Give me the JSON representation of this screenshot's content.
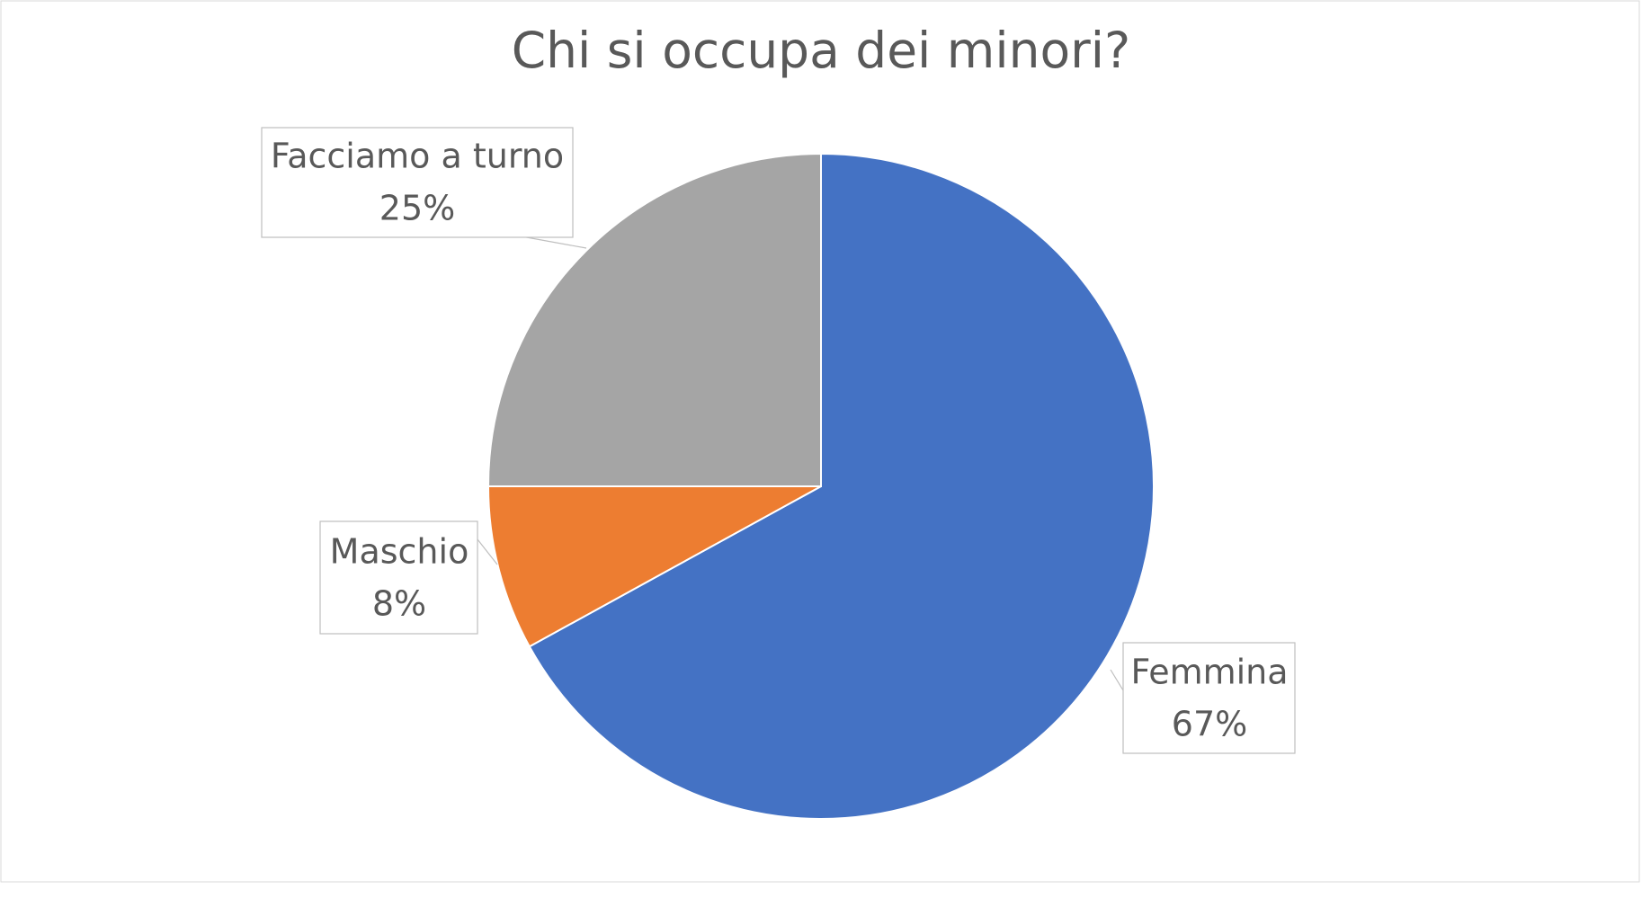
{
  "chart_data": {
    "type": "pie",
    "title": "Chi si occupa dei minori?",
    "categories": [
      "Femmina",
      "Maschio",
      "Facciamo a turno"
    ],
    "values": [
      67,
      8,
      25
    ],
    "value_labels": [
      "67%",
      "8%",
      "25%"
    ],
    "colors": [
      "#4472c4",
      "#ed7d31",
      "#a5a5a5"
    ]
  }
}
